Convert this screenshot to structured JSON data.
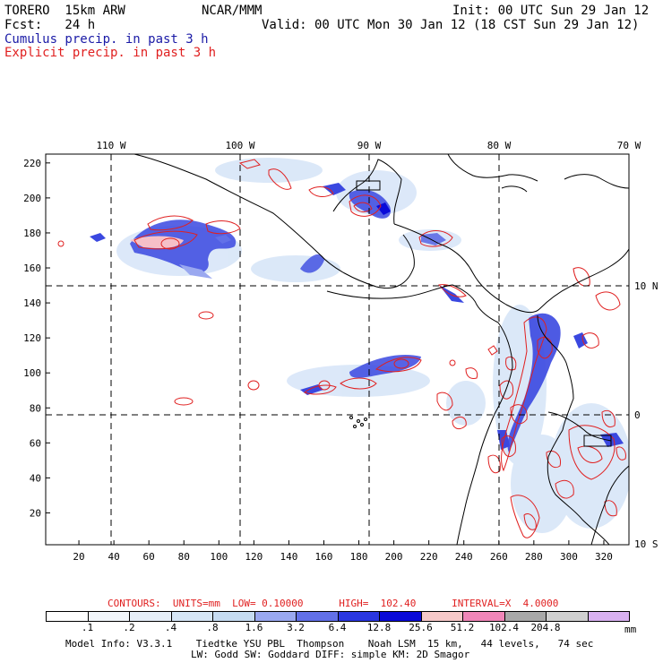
{
  "header": {
    "model": "TORERO  15km ARW",
    "org": "NCAR/MMM",
    "init": "Init: 00 UTC Sun 29 Jan 12",
    "fcst": "Fcst:   24 h",
    "valid": "Valid: 00 UTC Mon 30 Jan 12 (18 CST Sun 29 Jan 12)",
    "legend_cumulus": "Cumulus precip. in past 3 h",
    "legend_explicit": "Explicit precip. in past 3 h"
  },
  "colors": {
    "cumulus": "#1a1aa6",
    "explicit": "#e02020"
  },
  "map": {
    "top_lon_labels": [
      "110 W",
      "100 W",
      "90 W",
      "80 W",
      "70 W"
    ],
    "right_lat_labels": [
      "10 N",
      "0",
      "10 S"
    ],
    "left_ticks": [
      "220",
      "200",
      "180",
      "160",
      "140",
      "120",
      "100",
      "80",
      "60",
      "40",
      "20"
    ],
    "bottom_ticks": [
      "20",
      "40",
      "60",
      "80",
      "100",
      "120",
      "140",
      "160",
      "180",
      "200",
      "220",
      "240",
      "260",
      "280",
      "300",
      "320"
    ]
  },
  "contours": {
    "label": "CONTOURS:  UNITS=mm  LOW= 0.10000      HIGH=  102.40      INTERVAL=X  4.0000"
  },
  "colorbar": {
    "colors": [
      "#ffffff",
      "#f2f6fb",
      "#e6eef8",
      "#d6e6f6",
      "#c6dcf2",
      "#9aa8f0",
      "#6270e8",
      "#2a36e0",
      "#0a0ad8",
      "#f6c8c8",
      "#f086b8",
      "#a8a8a8",
      "#d0d0d0",
      "#d8b0f0"
    ],
    "labels": [
      ".1",
      ".2",
      ".4",
      ".8",
      "1.6",
      "3.2",
      "6.4",
      "12.8",
      "25.6",
      "51.2",
      "102.4",
      "204.8"
    ],
    "units": "mm"
  },
  "footer": {
    "line1": "Model Info: V3.3.1    Tiedtke YSU PBL  Thompson    Noah LSM  15 km,   44 levels,   74 sec",
    "line2": "LW: Godd SW: Goddard DIFF: simple KM: 2D Smagor"
  }
}
